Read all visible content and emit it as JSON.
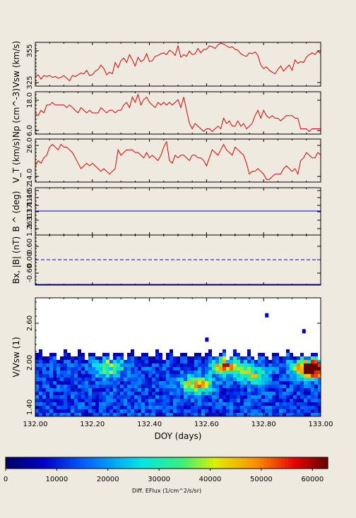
{
  "chart_data": [
    {
      "type": "line",
      "ylabel": "Vsw (km/s)",
      "ylim": [
        320,
        370
      ],
      "yticks": [
        "325",
        "355"
      ],
      "color": "#e00000",
      "x": [
        132.0,
        132.01,
        132.02,
        132.03,
        132.04,
        132.05,
        132.06,
        132.07,
        132.08,
        132.09,
        132.1,
        132.11,
        132.12,
        132.13,
        132.14,
        132.15,
        132.16,
        132.17,
        132.18,
        132.19,
        132.2,
        132.21,
        132.22,
        132.23,
        132.24,
        132.25,
        132.26,
        132.27,
        132.28,
        132.29,
        132.3,
        132.31,
        132.32,
        132.33,
        132.34,
        132.35,
        132.36,
        132.37,
        132.38,
        132.39,
        132.4,
        132.41,
        132.42,
        132.43,
        132.44,
        132.45,
        132.46,
        132.47,
        132.48,
        132.49,
        132.5,
        132.51,
        132.52,
        132.53,
        132.54,
        132.55,
        132.56,
        132.57,
        132.58,
        132.59,
        132.6,
        132.61,
        132.62,
        132.63,
        132.64,
        132.65,
        132.66,
        132.67,
        132.68,
        132.69,
        132.7,
        132.71,
        132.72,
        132.73,
        132.74,
        132.75,
        132.76,
        132.77,
        132.78,
        132.79,
        132.8,
        132.81,
        132.82,
        132.83,
        132.84,
        132.85,
        132.86,
        132.87,
        132.88,
        132.89,
        132.9,
        132.91,
        132.92,
        132.93,
        132.94,
        132.95,
        132.96,
        132.97,
        132.98,
        132.99,
        133.0
      ],
      "y": [
        331,
        333,
        328,
        332,
        331,
        332,
        330,
        331,
        329,
        330,
        332,
        329,
        326,
        332,
        331,
        333,
        335,
        334,
        338,
        332,
        333,
        337,
        339,
        344,
        340,
        333,
        336,
        334,
        347,
        341,
        349,
        352,
        347,
        356,
        350,
        343,
        353,
        348,
        350,
        357,
        348,
        349,
        354,
        355,
        357,
        358,
        356,
        361,
        359,
        355,
        366,
        353,
        356,
        354,
        360,
        356,
        357,
        363,
        358,
        362,
        362,
        366,
        365,
        363,
        367,
        369,
        368,
        366,
        364,
        365,
        362,
        361,
        357,
        355,
        354,
        358,
        357,
        359,
        355,
        344,
        340,
        342,
        338,
        336,
        334,
        339,
        343,
        337,
        341,
        344,
        338,
        350,
        346,
        348,
        347,
        353,
        356,
        358,
        356,
        360,
        357
      ]
    },
    {
      "type": "line",
      "ylabel": "Np (cm^-3)",
      "ylim": [
        4,
        20
      ],
      "yticks": [
        "6.0",
        "18.0"
      ],
      "color": "#e00000",
      "x": [
        132.0,
        132.01,
        132.02,
        132.03,
        132.04,
        132.05,
        132.06,
        132.07,
        132.08,
        132.09,
        132.1,
        132.11,
        132.12,
        132.13,
        132.14,
        132.15,
        132.16,
        132.17,
        132.18,
        132.19,
        132.2,
        132.21,
        132.22,
        132.23,
        132.24,
        132.25,
        132.26,
        132.27,
        132.28,
        132.29,
        132.3,
        132.31,
        132.32,
        132.33,
        132.34,
        132.35,
        132.36,
        132.37,
        132.38,
        132.39,
        132.4,
        132.41,
        132.42,
        132.43,
        132.44,
        132.45,
        132.46,
        132.47,
        132.48,
        132.49,
        132.5,
        132.51,
        132.52,
        132.53,
        132.54,
        132.55,
        132.56,
        132.57,
        132.58,
        132.59,
        132.6,
        132.61,
        132.62,
        132.63,
        132.64,
        132.65,
        132.66,
        132.67,
        132.68,
        132.69,
        132.7,
        132.71,
        132.72,
        132.73,
        132.74,
        132.75,
        132.76,
        132.77,
        132.78,
        132.79,
        132.8,
        132.81,
        132.82,
        132.83,
        132.84,
        132.85,
        132.86,
        132.87,
        132.88,
        132.89,
        132.9,
        132.91,
        132.92,
        132.93,
        132.94,
        132.95,
        132.96,
        132.97,
        132.98,
        132.99,
        133.0
      ],
      "y": [
        12,
        11,
        13,
        12,
        15,
        15,
        16,
        15,
        15,
        15,
        15,
        14,
        15,
        14,
        13,
        12,
        14,
        13,
        12,
        13,
        12,
        12,
        12,
        14,
        13,
        12,
        13,
        13,
        12,
        13,
        13,
        15,
        16,
        14,
        18,
        16,
        19,
        15,
        17,
        18,
        16,
        15,
        14,
        16,
        15,
        16,
        15,
        16,
        15,
        16,
        17,
        14,
        18,
        13,
        8,
        6,
        8,
        7,
        6,
        5,
        6,
        6,
        5,
        6,
        7,
        6,
        10,
        8,
        9,
        7,
        7,
        9,
        7,
        8,
        6,
        7,
        8,
        11,
        13,
        10,
        13,
        11,
        10,
        11,
        10,
        10,
        9,
        10,
        11,
        11,
        11,
        10,
        10,
        6,
        6,
        6,
        5,
        6,
        6,
        6,
        6
      ]
    },
    {
      "type": "line",
      "ylabel": "V_T (km/s)",
      "ylim": [
        12,
        28
      ],
      "yticks": [
        "14.0",
        "26.0"
      ],
      "color": "#e00000",
      "x": [
        132.0,
        132.01,
        132.02,
        132.03,
        132.04,
        132.05,
        132.06,
        132.07,
        132.08,
        132.09,
        132.1,
        132.11,
        132.12,
        132.13,
        132.14,
        132.15,
        132.16,
        132.17,
        132.18,
        132.19,
        132.2,
        132.21,
        132.22,
        132.23,
        132.24,
        132.25,
        132.26,
        132.27,
        132.28,
        132.29,
        132.3,
        132.31,
        132.32,
        132.33,
        132.34,
        132.35,
        132.36,
        132.37,
        132.38,
        132.39,
        132.4,
        132.41,
        132.42,
        132.43,
        132.44,
        132.45,
        132.46,
        132.47,
        132.48,
        132.49,
        132.5,
        132.51,
        132.52,
        132.53,
        132.54,
        132.55,
        132.56,
        132.57,
        132.58,
        132.59,
        132.6,
        132.61,
        132.62,
        132.63,
        132.64,
        132.65,
        132.66,
        132.67,
        132.68,
        132.69,
        132.7,
        132.71,
        132.72,
        132.73,
        132.74,
        132.75,
        132.76,
        132.77,
        132.78,
        132.79,
        132.8,
        132.81,
        132.82,
        132.83,
        132.84,
        132.85,
        132.86,
        132.87,
        132.88,
        132.89,
        132.9,
        132.91,
        132.92,
        132.93,
        132.94,
        132.95,
        132.96,
        132.97,
        132.98,
        132.99,
        133.0
      ],
      "y": [
        18,
        20,
        19,
        21,
        22,
        25,
        26,
        25,
        24,
        26,
        25,
        25,
        24,
        23,
        21,
        19,
        17,
        18,
        19,
        18,
        19,
        18,
        17,
        16,
        17,
        16,
        15,
        16,
        17,
        24,
        22,
        23,
        24,
        24,
        24,
        23,
        23,
        22,
        21,
        23,
        21,
        22,
        21,
        20,
        22,
        25,
        27,
        20,
        19,
        22,
        21,
        22,
        22,
        21,
        20,
        22,
        22,
        21,
        21,
        20,
        18,
        21,
        24,
        23,
        22,
        24,
        26,
        24,
        23,
        22,
        25,
        24,
        23,
        22,
        19,
        15,
        16,
        16,
        17,
        16,
        15,
        13,
        13,
        14,
        15,
        15,
        15,
        17,
        18,
        17,
        16,
        17,
        15,
        20,
        21,
        23,
        22,
        21,
        21,
        23,
        22
      ]
    },
    {
      "type": "line",
      "ylabel": "B ^ (deg)",
      "yticks": [
        "1.26",
        "1.31",
        "1.37",
        "1.41",
        "1.46",
        "1.52"
      ],
      "series": [
        {
          "values": [
            1.43,
            1.43
          ],
          "color": "#0000b0",
          "style": "solid"
        },
        {
          "values": [
            1.26,
            1.26
          ],
          "color": "#30c8c8",
          "style": "solid"
        }
      ],
      "x": [
        132.0,
        133.0
      ]
    },
    {
      "type": "line",
      "ylabel": "Bx, |B| (nT)",
      "yticks": [
        "-0.60",
        "0.00",
        "0.60"
      ],
      "ylim": [
        -0.7,
        0.7
      ],
      "series": [
        {
          "values": [
            0.0,
            0.0
          ],
          "color": "#0000b0",
          "style": "dashed"
        },
        {
          "values": [
            -0.7,
            -0.7
          ],
          "color": "#0000b0",
          "style": "solid"
        }
      ],
      "x": [
        132.0,
        133.0
      ]
    },
    {
      "type": "heatmap",
      "ylabel": "V/Vsw (1)",
      "xlabel": "DOY (days)",
      "xlim": [
        132.0,
        133.0
      ],
      "ylim": [
        1.28,
        2.84
      ],
      "yticks": [
        "1.40",
        "2.00",
        "2.60"
      ],
      "xticks": [
        "132.00",
        "132.20",
        "132.40",
        "132.60",
        "132.80",
        "133.00"
      ],
      "colorbar": {
        "label": "Diff. EFlux (1/cm^2/s/sr)",
        "ticks": [
          "0",
          "10000",
          "20000",
          "30000",
          "40000",
          "50000",
          "60000"
        ],
        "min": 0,
        "max": 63000
      },
      "hotspots": [
        {
          "x": 132.66,
          "y": 1.97,
          "value": 42000
        },
        {
          "x": 132.56,
          "y": 1.72,
          "value": 38000
        },
        {
          "x": 132.94,
          "y": 1.95,
          "value": 40000
        },
        {
          "x": 132.98,
          "y": 1.93,
          "value": 55000
        },
        {
          "x": 132.25,
          "y": 1.96,
          "value": 32000
        },
        {
          "x": 132.75,
          "y": 1.86,
          "value": 30000
        }
      ],
      "outliers": [
        {
          "x": 132.81,
          "y": 2.61
        },
        {
          "x": 132.94,
          "y": 2.4
        },
        {
          "x": 132.6,
          "y": 2.29
        }
      ]
    }
  ]
}
